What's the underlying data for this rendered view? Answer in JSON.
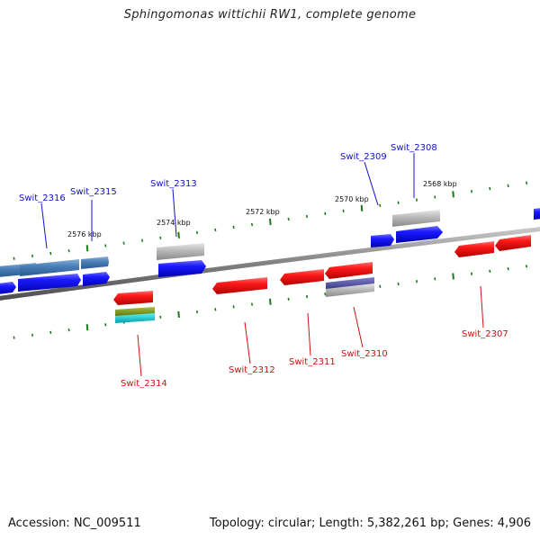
{
  "header": {
    "title": "Sphingomonas wittichii RW1, complete genome"
  },
  "footer": {
    "accession": "Accession: NC_009511",
    "summary": "Topology: circular; Length: 5,382,261 bp; Genes: 4,906"
  },
  "colors": {
    "forward_gene": "#1010ee",
    "reverse_gene": "#e01010",
    "label_forward": "#1010cc",
    "label_reverse": "#cc1010",
    "backbone": "#888888",
    "tick": "#1a7a1a"
  },
  "kbp_labels": [
    "2576 kbp",
    "2574 kbp",
    "2572 kbp",
    "2570 kbp",
    "2568 kbp"
  ],
  "genes_top": [
    "Swit_2316",
    "Swit_2315",
    "Swit_2313",
    "Swit_2309",
    "Swit_2308"
  ],
  "genes_bottom": [
    "Swit_2314",
    "Swit_2312",
    "Swit_2311",
    "Swit_2310",
    "Swit_2307"
  ]
}
